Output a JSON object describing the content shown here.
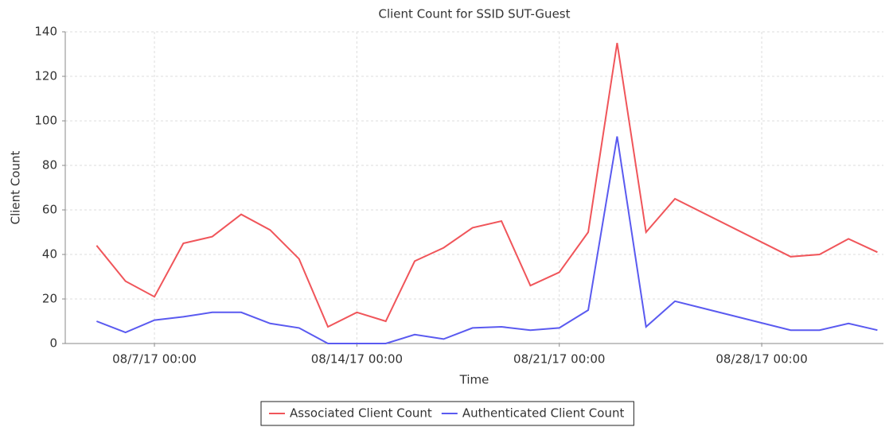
{
  "chart_data": {
    "type": "line",
    "title": "Client Count for SSID SUT-Guest",
    "x_label": "Time",
    "y_label": "Client Count",
    "x": [
      "2017-08-05T00:00",
      "2017-08-06T00:00",
      "2017-08-07T00:00",
      "2017-08-08T00:00",
      "2017-08-09T00:00",
      "2017-08-10T00:00",
      "2017-08-11T00:00",
      "2017-08-12T00:00",
      "2017-08-13T00:00",
      "2017-08-14T00:00",
      "2017-08-15T00:00",
      "2017-08-16T00:00",
      "2017-08-17T00:00",
      "2017-08-18T00:00",
      "2017-08-19T00:00",
      "2017-08-20T00:00",
      "2017-08-21T00:00",
      "2017-08-22T00:00",
      "2017-08-23T00:00",
      "2017-08-24T00:00",
      "2017-08-25T00:00",
      "2017-08-29T00:00",
      "2017-08-30T00:00",
      "2017-08-31T00:00",
      "2017-09-01T00:00"
    ],
    "series": [
      {
        "name": "Associated Client Count",
        "color": "#f0555a",
        "values": [
          44,
          28,
          21,
          45,
          48,
          58,
          51,
          38,
          7.5,
          14,
          10,
          37,
          43,
          52,
          55,
          26,
          32,
          50,
          135,
          50,
          65,
          39,
          40,
          47,
          41
        ]
      },
      {
        "name": "Authenticated Client Count",
        "color": "#5a5af0",
        "values": [
          10,
          5,
          10.5,
          12,
          14,
          14,
          9,
          7,
          0,
          0,
          0,
          4,
          2,
          7,
          7.5,
          6,
          7,
          15,
          93,
          7.5,
          19,
          6,
          6,
          9,
          6
        ]
      }
    ],
    "xlim": [
      "2017-08-03T22:00",
      "2017-09-01T05:00"
    ],
    "xticks": [
      {
        "value": "2017-08-07T00:00",
        "label": "08/7/17 00:00"
      },
      {
        "value": "2017-08-14T00:00",
        "label": "08/14/17 00:00"
      },
      {
        "value": "2017-08-21T00:00",
        "label": "08/21/17 00:00"
      },
      {
        "value": "2017-08-28T00:00",
        "label": "08/28/17 00:00"
      }
    ],
    "ylim": [
      0,
      140
    ],
    "yticks": [
      0,
      20,
      40,
      60,
      80,
      100,
      120,
      140
    ],
    "grid": true,
    "legend": "bottom"
  }
}
